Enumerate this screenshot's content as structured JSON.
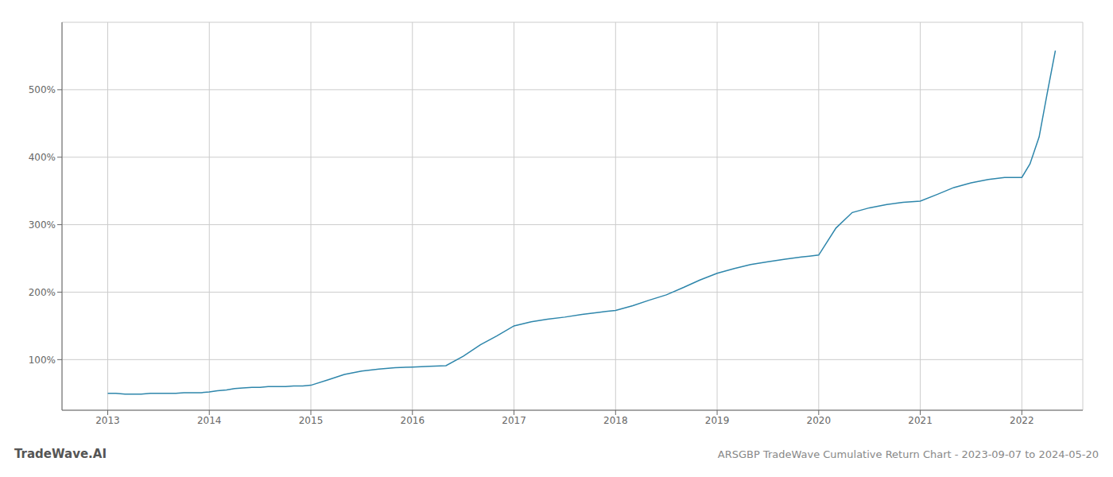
{
  "chart_data": {
    "type": "line",
    "title": "ARSGBP TradeWave Cumulative Return Chart - 2023-09-07 to 2024-05-20",
    "annotations": [
      "TradeWave.AI"
    ],
    "color": "#2e86ab",
    "grid": true,
    "xlim": [
      2012.55,
      2022.6
    ],
    "xticks": [
      2013,
      2014,
      2015,
      2016,
      2017,
      2018,
      2019,
      2020,
      2021,
      2022
    ],
    "ylim": [
      25,
      600
    ],
    "yticks": [
      {
        "value": 100,
        "label": "100%"
      },
      {
        "value": 200,
        "label": "200%"
      },
      {
        "value": 300,
        "label": "300%"
      },
      {
        "value": 400,
        "label": "400%"
      },
      {
        "value": 500,
        "label": "500%"
      }
    ],
    "x": [
      2013.0,
      2013.08,
      2013.17,
      2013.25,
      2013.33,
      2013.42,
      2013.5,
      2013.58,
      2013.67,
      2013.75,
      2013.83,
      2013.92,
      2014.0,
      2014.08,
      2014.17,
      2014.25,
      2014.33,
      2014.42,
      2014.5,
      2014.58,
      2014.67,
      2014.75,
      2014.83,
      2014.92,
      2015.0,
      2015.17,
      2015.33,
      2015.5,
      2015.67,
      2015.83,
      2016.0,
      2016.17,
      2016.33,
      2016.5,
      2016.67,
      2016.83,
      2017.0,
      2017.17,
      2017.33,
      2017.5,
      2017.67,
      2017.83,
      2018.0,
      2018.17,
      2018.33,
      2018.5,
      2018.67,
      2018.83,
      2019.0,
      2019.17,
      2019.33,
      2019.5,
      2019.67,
      2019.83,
      2020.0,
      2020.17,
      2020.33,
      2020.5,
      2020.67,
      2020.83,
      2021.0,
      2021.17,
      2021.33,
      2021.5,
      2021.67,
      2021.83,
      2022.0,
      2022.08,
      2022.17,
      2022.25,
      2022.33
    ],
    "values": [
      50,
      50,
      49,
      49,
      49,
      50,
      50,
      50,
      50,
      51,
      51,
      51,
      52,
      54,
      55,
      57,
      58,
      59,
      59,
      60,
      60,
      60,
      61,
      61,
      62,
      70,
      78,
      83,
      86,
      88,
      89,
      90,
      91,
      105,
      122,
      135,
      150,
      156,
      160,
      163,
      167,
      170,
      173,
      180,
      188,
      196,
      207,
      218,
      228,
      235,
      241,
      245,
      249,
      252,
      255,
      295,
      318,
      325,
      330,
      333,
      335,
      345,
      355,
      362,
      367,
      370,
      370,
      390,
      430,
      495,
      558
    ]
  }
}
